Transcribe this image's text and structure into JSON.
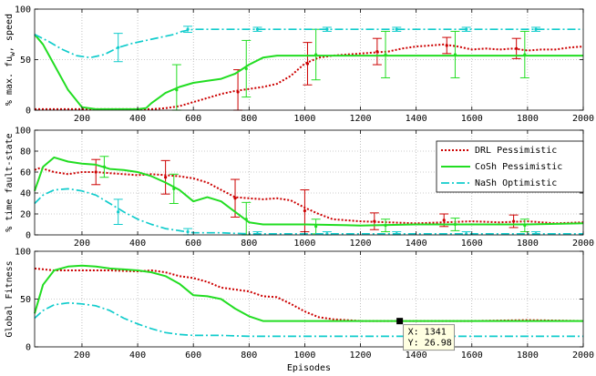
{
  "chart_data": {
    "type": "line",
    "xlabel": "Episodes",
    "x_ticks": [
      200,
      400,
      600,
      800,
      1000,
      1200,
      1400,
      1600,
      1800,
      2000
    ],
    "legend": {
      "placement": "right-of-middle-panel",
      "entries": [
        {
          "label": "DRL Pessimistic",
          "color": "#cc0000",
          "style": "dotted"
        },
        {
          "label": "CoSh Pessimistic",
          "color": "#22dd22",
          "style": "solid"
        },
        {
          "label": "NaSh Optimistic",
          "color": "#11cccc",
          "style": "dashdot"
        }
      ]
    },
    "panels": [
      {
        "id": "speed",
        "ylabel": "% max. fu, speed",
        "ylabel_subscript": "w",
        "ylim": [
          0,
          100
        ],
        "xlim": [
          30,
          2000
        ],
        "y_ticks": [
          0,
          50,
          100
        ],
        "grid": true,
        "series": [
          {
            "legend_index": 0,
            "x": [
              30,
              100,
              200,
              300,
              400,
              450,
              500,
              550,
              600,
              650,
              700,
              750,
              800,
              850,
              900,
              950,
              1000,
              1050,
              1100,
              1150,
              1200,
              1250,
              1300,
              1350,
              1400,
              1450,
              1500,
              1550,
              1600,
              1650,
              1700,
              1750,
              1800,
              1850,
              1900,
              1950,
              2000
            ],
            "y": [
              1,
              1,
              1,
              1,
              1,
              1,
              2,
              4,
              8,
              12,
              16,
              19,
              21,
              23,
              26,
              34,
              46,
              52,
              54,
              55,
              56,
              57,
              58,
              61,
              63,
              64,
              65,
              63,
              60,
              61,
              60,
              61,
              59,
              60,
              60,
              62,
              63
            ],
            "error_bars": [
              {
                "x": 760,
                "y": 18,
                "err": 22
              },
              {
                "x": 1010,
                "y": 46,
                "err": 21
              },
              {
                "x": 1260,
                "y": 58,
                "err": 13
              },
              {
                "x": 1510,
                "y": 64,
                "err": 8
              },
              {
                "x": 1760,
                "y": 61,
                "err": 10
              }
            ]
          },
          {
            "legend_index": 1,
            "x": [
              30,
              60,
              100,
              150,
              200,
              250,
              300,
              350,
              400,
              430,
              450,
              480,
              500,
              550,
              600,
              650,
              700,
              750,
              800,
              850,
              900,
              1000,
              1200,
              1400,
              1600,
              1800,
              2000
            ],
            "y": [
              75,
              65,
              45,
              20,
              3,
              1,
              1,
              1,
              1,
              2,
              7,
              13,
              17,
              23,
              27,
              29,
              31,
              36,
              45,
              52,
              54,
              54,
              54,
              54,
              54,
              54,
              54
            ],
            "error_bars": [
              {
                "x": 540,
                "y": 20,
                "err": 25
              },
              {
                "x": 790,
                "y": 41,
                "err": 28
              },
              {
                "x": 1040,
                "y": 55,
                "err": 25
              },
              {
                "x": 1290,
                "y": 55,
                "err": 23
              },
              {
                "x": 1540,
                "y": 55,
                "err": 23
              },
              {
                "x": 1790,
                "y": 55,
                "err": 23
              }
            ]
          },
          {
            "legend_index": 2,
            "x": [
              30,
              80,
              130,
              180,
              230,
              280,
              330,
              380,
              430,
              480,
              530,
              560,
              600,
              700,
              800,
              1000,
              1200,
              1400,
              1600,
              1800,
              2000
            ],
            "y": [
              75,
              68,
              60,
              54,
              52,
              55,
              62,
              66,
              69,
              72,
              75,
              78,
              80,
              80,
              80,
              80,
              80,
              80,
              80,
              80,
              80
            ],
            "error_bars": [
              {
                "x": 330,
                "y": 62,
                "err": 14
              },
              {
                "x": 580,
                "y": 80,
                "err": 3
              },
              {
                "x": 830,
                "y": 80,
                "err": 2
              },
              {
                "x": 1080,
                "y": 80,
                "err": 2
              },
              {
                "x": 1330,
                "y": 80,
                "err": 2
              },
              {
                "x": 1580,
                "y": 80,
                "err": 2
              },
              {
                "x": 1830,
                "y": 80,
                "err": 2
              }
            ]
          }
        ]
      },
      {
        "id": "fault",
        "ylabel": "% time fault-state",
        "ylim": [
          0,
          100
        ],
        "xlim": [
          30,
          2000
        ],
        "y_ticks": [
          0,
          20,
          40,
          60,
          80,
          100
        ],
        "grid": true,
        "series": [
          {
            "legend_index": 0,
            "x": [
              30,
              50,
              100,
              150,
              200,
              250,
              300,
              350,
              400,
              450,
              500,
              550,
              600,
              650,
              700,
              750,
              800,
              850,
              900,
              950,
              1000,
              1050,
              1100,
              1200,
              1300,
              1400,
              1500,
              1600,
              1700,
              1800,
              1900,
              2000
            ],
            "y": [
              62,
              64,
              60,
              58,
              60,
              60,
              59,
              58,
              57,
              58,
              57,
              56,
              54,
              50,
              43,
              36,
              35,
              34,
              35,
              33,
              26,
              20,
              15,
              13,
              12,
              11,
              12,
              13,
              12,
              13,
              11,
              12
            ],
            "error_bars": [
              {
                "x": 250,
                "y": 60,
                "err": 12
              },
              {
                "x": 500,
                "y": 55,
                "err": 16
              },
              {
                "x": 750,
                "y": 35,
                "err": 18
              },
              {
                "x": 1000,
                "y": 23,
                "err": 20
              },
              {
                "x": 1250,
                "y": 13,
                "err": 8
              },
              {
                "x": 1500,
                "y": 14,
                "err": 6
              },
              {
                "x": 1750,
                "y": 13,
                "err": 6
              }
            ]
          },
          {
            "legend_index": 1,
            "x": [
              30,
              60,
              100,
              150,
              200,
              250,
              300,
              350,
              400,
              450,
              500,
              550,
              600,
              650,
              700,
              750,
              800,
              850,
              900,
              1000,
              1200,
              1400,
              1600,
              1800,
              2000
            ],
            "y": [
              42,
              65,
              74,
              70,
              68,
              67,
              63,
              62,
              60,
              56,
              50,
              43,
              32,
              36,
              32,
              22,
              12,
              10,
              10,
              10,
              9,
              10,
              10,
              10,
              11
            ],
            "error_bars": [
              {
                "x": 280,
                "y": 65,
                "err": 10
              },
              {
                "x": 530,
                "y": 44,
                "err": 14
              },
              {
                "x": 790,
                "y": 15,
                "err": 16
              },
              {
                "x": 1040,
                "y": 8,
                "err": 7
              },
              {
                "x": 1290,
                "y": 9,
                "err": 6
              },
              {
                "x": 1540,
                "y": 10,
                "err": 6
              },
              {
                "x": 1790,
                "y": 9,
                "err": 6
              }
            ]
          },
          {
            "legend_index": 2,
            "x": [
              30,
              60,
              100,
              150,
              200,
              250,
              300,
              350,
              400,
              450,
              500,
              550,
              600,
              700,
              800,
              1000,
              1200,
              1400,
              1600,
              1800,
              2000
            ],
            "y": [
              30,
              38,
              43,
              44,
              42,
              38,
              30,
              22,
              15,
              10,
              6,
              4,
              2,
              2,
              1,
              1,
              1,
              1,
              1,
              1,
              1
            ],
            "error_bars": [
              {
                "x": 330,
                "y": 22,
                "err": 12
              },
              {
                "x": 580,
                "y": 3,
                "err": 3
              },
              {
                "x": 830,
                "y": 1,
                "err": 2
              },
              {
                "x": 1080,
                "y": 1,
                "err": 2
              },
              {
                "x": 1330,
                "y": 1,
                "err": 2
              },
              {
                "x": 1580,
                "y": 1,
                "err": 2
              },
              {
                "x": 1830,
                "y": 1,
                "err": 2
              }
            ]
          }
        ]
      },
      {
        "id": "fitness",
        "ylabel": "Global Fitness",
        "ylim": [
          0,
          100
        ],
        "xlim": [
          30,
          2000
        ],
        "y_ticks": [
          0,
          50,
          100
        ],
        "grid": true,
        "series": [
          {
            "legend_index": 0,
            "x": [
              30,
              100,
              200,
              300,
              400,
              450,
              500,
              550,
              600,
              650,
              700,
              750,
              800,
              850,
              900,
              950,
              1000,
              1050,
              1100,
              1150,
              1200,
              1300,
              1400,
              1600,
              1800,
              2000
            ],
            "y": [
              82,
              80,
              80,
              80,
              79,
              80,
              78,
              74,
              72,
              68,
              62,
              60,
              58,
              53,
              52,
              45,
              37,
              31,
              29,
              28,
              27,
              27,
              27,
              27,
              28,
              27
            ],
            "error_bars": []
          },
          {
            "legend_index": 1,
            "x": [
              30,
              60,
              100,
              150,
              200,
              250,
              300,
              350,
              400,
              450,
              500,
              550,
              600,
              650,
              700,
              750,
              800,
              850,
              900,
              1000,
              1200,
              1400,
              1600,
              1800,
              2000
            ],
            "y": [
              35,
              65,
              80,
              84,
              85,
              84,
              82,
              81,
              80,
              78,
              74,
              66,
              54,
              53,
              50,
              40,
              32,
              27,
              27,
              27,
              27,
              27,
              27,
              27,
              27
            ],
            "error_bars": []
          },
          {
            "legend_index": 2,
            "x": [
              30,
              60,
              100,
              150,
              200,
              250,
              300,
              350,
              400,
              450,
              500,
              550,
              600,
              700,
              800,
              1000,
              1200,
              1400,
              1600,
              1800,
              2000
            ],
            "y": [
              30,
              38,
              44,
              46,
              45,
              43,
              38,
              30,
              24,
              19,
              15,
              13,
              12,
              12,
              11,
              11,
              11,
              11,
              11,
              11,
              11
            ],
            "error_bars": []
          }
        ]
      }
    ],
    "datatip": {
      "panel": "fitness",
      "x": 1341,
      "y": 26.98,
      "label_x": "X: 1341",
      "label_y": "Y: 26.98"
    }
  }
}
